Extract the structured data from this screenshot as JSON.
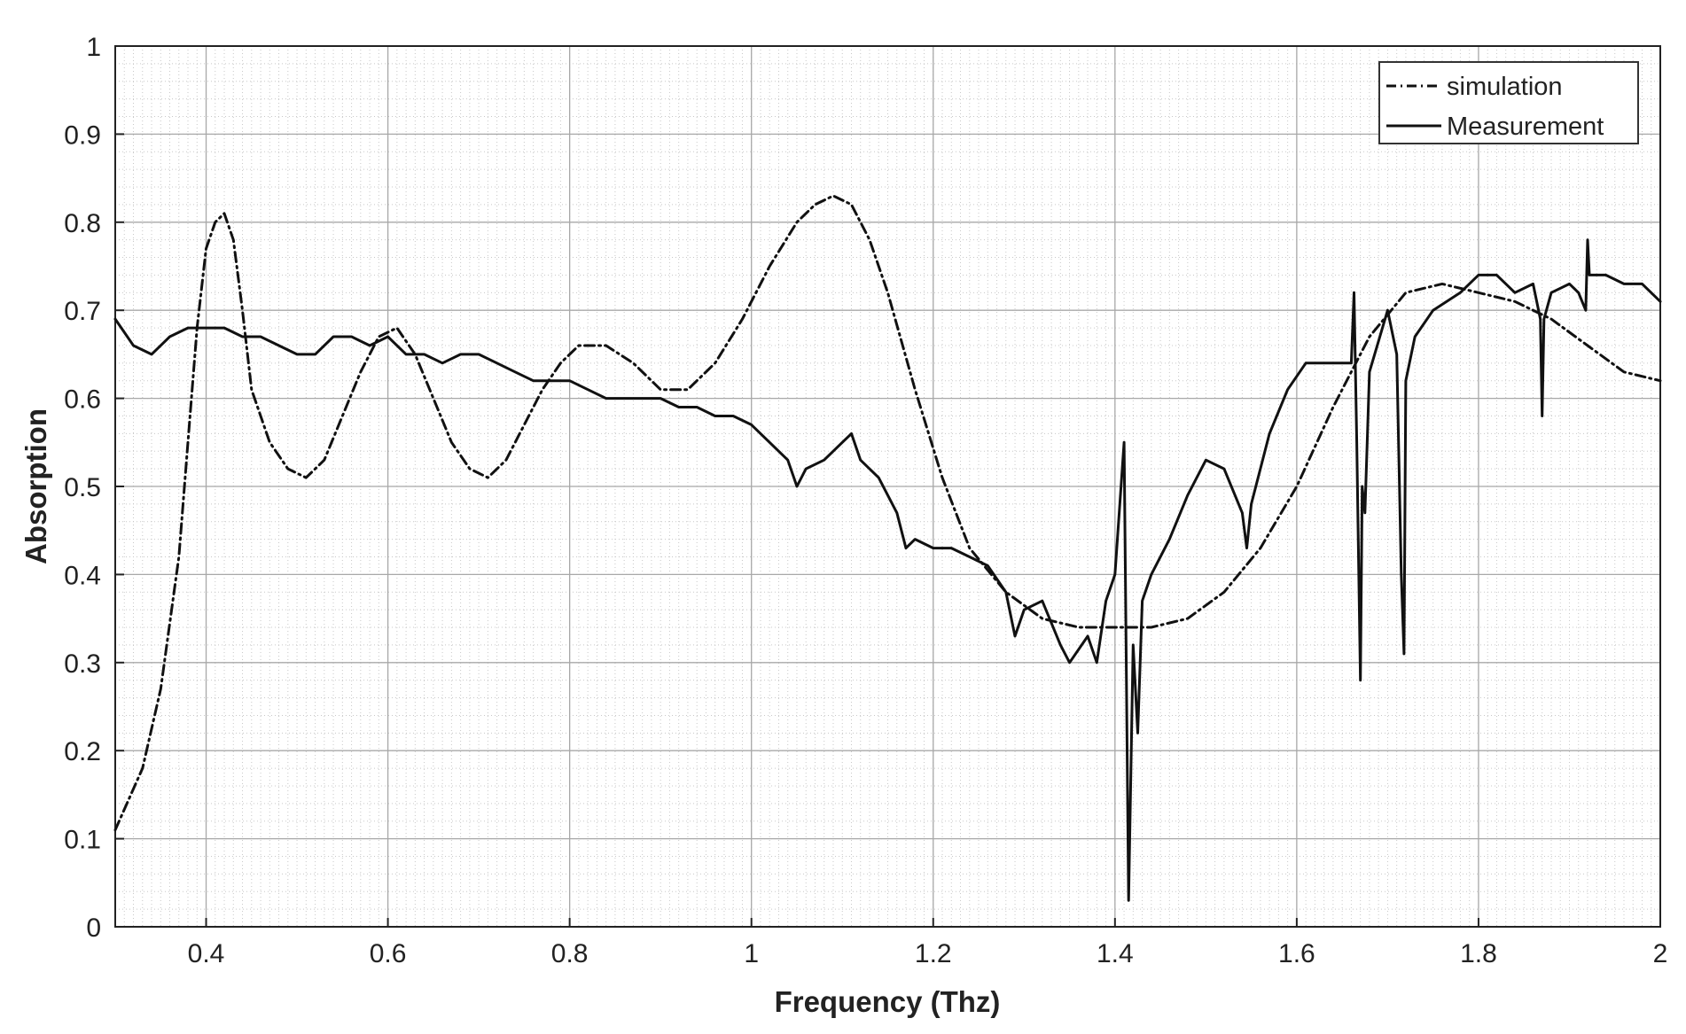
{
  "chart_data": {
    "type": "line",
    "title": "",
    "xlabel": "Frequency (Thz)",
    "ylabel": "Absorption",
    "xlim": [
      0.3,
      2.0
    ],
    "ylim": [
      0,
      1
    ],
    "xticks": [
      0.4,
      0.6,
      0.8,
      1,
      1.2,
      1.4,
      1.6,
      1.8,
      2
    ],
    "xtick_labels": [
      "0.4",
      "0.6",
      "0.8",
      "1",
      "1.2",
      "1.4",
      "1.6",
      "1.8",
      "2"
    ],
    "yticks": [
      0,
      0.1,
      0.2,
      0.3,
      0.4,
      0.5,
      0.6,
      0.7,
      0.8,
      0.9,
      1
    ],
    "ytick_labels": [
      "0",
      "0.1",
      "0.2",
      "0.3",
      "0.4",
      "0.5",
      "0.6",
      "0.7",
      "0.8",
      "0.9",
      "1"
    ],
    "grid": true,
    "minor_grid": true,
    "legend_position": "top-right",
    "series": [
      {
        "name": "simulation",
        "style": "dash-dot",
        "color": "#111111",
        "x": [
          0.3,
          0.33,
          0.35,
          0.37,
          0.38,
          0.39,
          0.4,
          0.41,
          0.42,
          0.43,
          0.44,
          0.45,
          0.47,
          0.49,
          0.51,
          0.53,
          0.55,
          0.57,
          0.59,
          0.61,
          0.63,
          0.65,
          0.67,
          0.69,
          0.71,
          0.73,
          0.75,
          0.77,
          0.79,
          0.81,
          0.84,
          0.87,
          0.9,
          0.93,
          0.96,
          0.99,
          1.02,
          1.05,
          1.07,
          1.09,
          1.11,
          1.13,
          1.15,
          1.18,
          1.21,
          1.24,
          1.28,
          1.32,
          1.36,
          1.4,
          1.44,
          1.48,
          1.52,
          1.56,
          1.6,
          1.64,
          1.68,
          1.72,
          1.76,
          1.8,
          1.84,
          1.88,
          1.92,
          1.96,
          2.0
        ],
        "y": [
          0.11,
          0.18,
          0.27,
          0.42,
          0.55,
          0.68,
          0.77,
          0.8,
          0.81,
          0.78,
          0.7,
          0.61,
          0.55,
          0.52,
          0.51,
          0.53,
          0.58,
          0.63,
          0.67,
          0.68,
          0.65,
          0.6,
          0.55,
          0.52,
          0.51,
          0.53,
          0.57,
          0.61,
          0.64,
          0.66,
          0.66,
          0.64,
          0.61,
          0.61,
          0.64,
          0.69,
          0.75,
          0.8,
          0.82,
          0.83,
          0.82,
          0.78,
          0.72,
          0.61,
          0.51,
          0.43,
          0.38,
          0.35,
          0.34,
          0.34,
          0.34,
          0.35,
          0.38,
          0.43,
          0.5,
          0.59,
          0.67,
          0.72,
          0.73,
          0.72,
          0.71,
          0.69,
          0.66,
          0.63,
          0.62
        ]
      },
      {
        "name": "Measurement",
        "style": "solid",
        "color": "#111111",
        "x": [
          0.3,
          0.32,
          0.34,
          0.36,
          0.38,
          0.4,
          0.42,
          0.44,
          0.46,
          0.48,
          0.5,
          0.52,
          0.54,
          0.56,
          0.58,
          0.6,
          0.62,
          0.64,
          0.66,
          0.68,
          0.7,
          0.72,
          0.74,
          0.76,
          0.78,
          0.8,
          0.82,
          0.84,
          0.86,
          0.88,
          0.9,
          0.92,
          0.94,
          0.96,
          0.98,
          1.0,
          1.02,
          1.04,
          1.05,
          1.06,
          1.08,
          1.1,
          1.11,
          1.12,
          1.14,
          1.16,
          1.17,
          1.18,
          1.2,
          1.22,
          1.24,
          1.26,
          1.28,
          1.29,
          1.3,
          1.32,
          1.34,
          1.35,
          1.37,
          1.38,
          1.39,
          1.4,
          1.41,
          1.415,
          1.42,
          1.425,
          1.43,
          1.44,
          1.46,
          1.48,
          1.5,
          1.52,
          1.54,
          1.545,
          1.55,
          1.57,
          1.59,
          1.61,
          1.63,
          1.65,
          1.66,
          1.663,
          1.666,
          1.67,
          1.672,
          1.675,
          1.68,
          1.7,
          1.71,
          1.715,
          1.718,
          1.72,
          1.73,
          1.75,
          1.78,
          1.8,
          1.82,
          1.84,
          1.86,
          1.868,
          1.87,
          1.872,
          1.88,
          1.9,
          1.91,
          1.918,
          1.92,
          1.922,
          1.94,
          1.96,
          1.98,
          2.0
        ],
        "y": [
          0.69,
          0.66,
          0.65,
          0.67,
          0.68,
          0.68,
          0.68,
          0.67,
          0.67,
          0.66,
          0.65,
          0.65,
          0.67,
          0.67,
          0.66,
          0.67,
          0.65,
          0.65,
          0.64,
          0.65,
          0.65,
          0.64,
          0.63,
          0.62,
          0.62,
          0.62,
          0.61,
          0.6,
          0.6,
          0.6,
          0.6,
          0.59,
          0.59,
          0.58,
          0.58,
          0.57,
          0.55,
          0.53,
          0.5,
          0.52,
          0.53,
          0.55,
          0.56,
          0.53,
          0.51,
          0.47,
          0.43,
          0.44,
          0.43,
          0.43,
          0.42,
          0.41,
          0.38,
          0.33,
          0.36,
          0.37,
          0.32,
          0.3,
          0.33,
          0.3,
          0.37,
          0.4,
          0.55,
          0.03,
          0.32,
          0.22,
          0.37,
          0.4,
          0.44,
          0.49,
          0.53,
          0.52,
          0.47,
          0.43,
          0.48,
          0.56,
          0.61,
          0.64,
          0.64,
          0.64,
          0.64,
          0.72,
          0.55,
          0.28,
          0.5,
          0.47,
          0.63,
          0.7,
          0.65,
          0.4,
          0.31,
          0.62,
          0.67,
          0.7,
          0.72,
          0.74,
          0.74,
          0.72,
          0.73,
          0.69,
          0.58,
          0.69,
          0.72,
          0.73,
          0.72,
          0.7,
          0.78,
          0.74,
          0.74,
          0.73,
          0.73,
          0.71
        ]
      }
    ]
  }
}
